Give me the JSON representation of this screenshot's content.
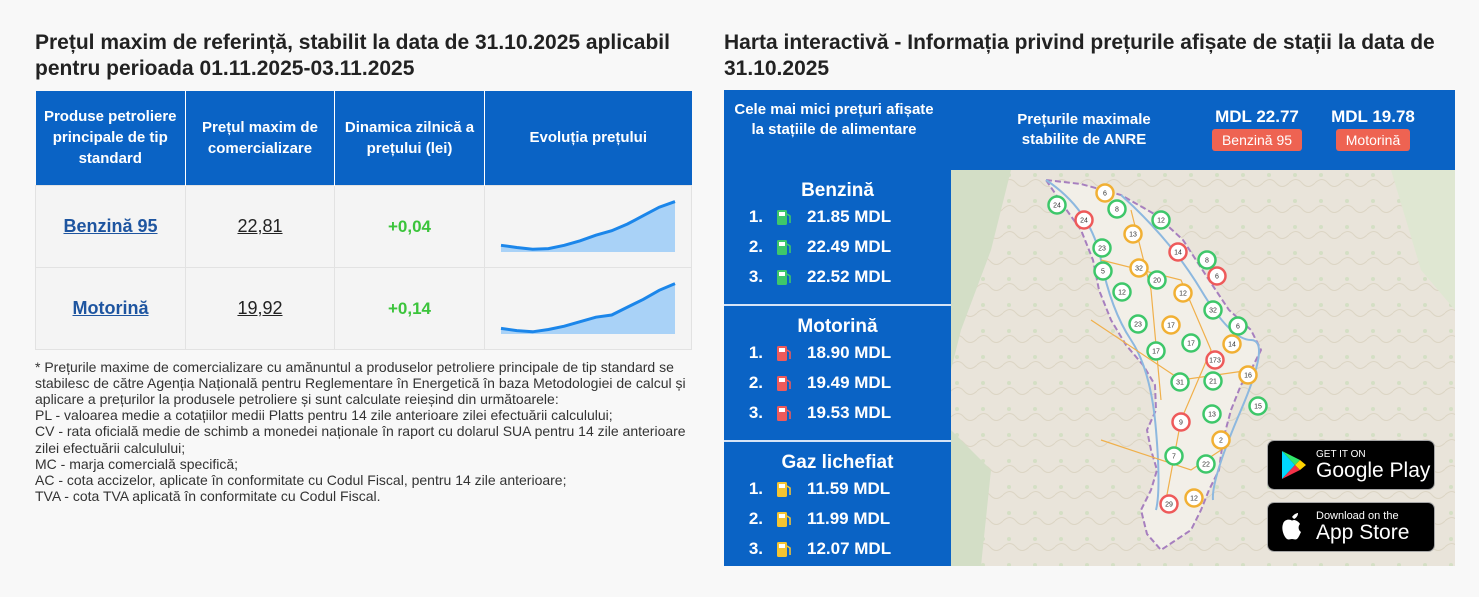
{
  "left": {
    "title": "Prețul maxim de referință, stabilit la data de 31.10.2025 aplicabil pentru perioada 01.11.2025-03.11.2025",
    "table": {
      "headers": [
        "Produse petroliere principale de tip standard",
        "Prețul maxim de comercializare",
        "Dinamica zilnică a prețului (lei)",
        "Evoluția prețului"
      ],
      "rows": [
        {
          "product": "Benzină 95",
          "price": "22,81",
          "delta": "+0,04",
          "trend": [
            0.12,
            0.08,
            0.05,
            0.06,
            0.12,
            0.2,
            0.3,
            0.38,
            0.5,
            0.65,
            0.8,
            0.9
          ]
        },
        {
          "product": "Motorină",
          "price": "19,92",
          "delta": "+0,14",
          "trend": [
            0.1,
            0.06,
            0.04,
            0.08,
            0.14,
            0.22,
            0.3,
            0.34,
            0.48,
            0.62,
            0.78,
            0.9
          ]
        }
      ]
    },
    "note": [
      "* Prețurile maxime de comercializare cu amănuntul a produselor petroliere principale de tip standard se stabilesc de către Agenția Națională pentru Reglementare în Energetică în baza Metodologiei de calcul și aplicare a prețurilor la produsele petroliere și sunt calculate reieșind din următoarele:",
      "PL - valoarea medie a cotațiilor medii Platts pentru 14 zile anterioare zilei efectuării calculului;",
      "CV - rata oficială medie de schimb a monedei naționale în raport cu dolarul SUA pentru 14 zile anterioare zilei efectuării calculului;",
      "MC - marja comercială specifică;",
      "AC - cota accizelor, aplicate în conformitate cu Codul Fiscal, pentru 14 zile anterioare;",
      "TVA - cota TVA aplicată în conformitate cu Codul Fiscal."
    ]
  },
  "right": {
    "title": "Harta interactivă - Informația privind prețurile afișate de stații la data de 31.10.2025",
    "header": {
      "lowest": "Cele mai mici prețuri afișate la stațiile de alimentare",
      "maxlabel": "Prețurile maximale stabilite de ANRE",
      "benzina_price": "MDL 22.77",
      "benzina_badge": "Benzină 95",
      "motorina_price": "MDL 19.78",
      "motorina_badge": "Motorină"
    },
    "categories": [
      {
        "title": "Benzină",
        "icon_color": "#3ec76a",
        "items": [
          {
            "rank": "1.",
            "price": "21.85 MDL"
          },
          {
            "rank": "2.",
            "price": "22.49 MDL"
          },
          {
            "rank": "3.",
            "price": "22.52 MDL"
          }
        ]
      },
      {
        "title": "Motorină",
        "icon_color": "#ee5a5a",
        "items": [
          {
            "rank": "1.",
            "price": "18.90 MDL"
          },
          {
            "rank": "2.",
            "price": "19.49 MDL"
          },
          {
            "rank": "3.",
            "price": "19.53 MDL"
          }
        ]
      },
      {
        "title": "Gaz lichefiat",
        "icon_color": "#f4c430",
        "items": [
          {
            "rank": "1.",
            "price": "11.59 MDL"
          },
          {
            "rank": "2.",
            "price": "11.99 MDL"
          },
          {
            "rank": "3.",
            "price": "12.07 MDL"
          }
        ]
      }
    ],
    "map_markers": [
      "24",
      "6",
      "24",
      "8",
      "12",
      "13",
      "23",
      "14",
      "5",
      "32",
      "20",
      "12",
      "6",
      "12",
      "8",
      "32",
      "23",
      "17",
      "6",
      "17",
      "17",
      "14",
      "173",
      "31",
      "21",
      "16",
      "15",
      "9",
      "13",
      "2",
      "7",
      "22",
      "29",
      "12"
    ],
    "google_play": {
      "top": "GET IT ON",
      "main": "Google Play"
    },
    "app_store": {
      "top": "Download on the",
      "main": "App Store"
    }
  }
}
